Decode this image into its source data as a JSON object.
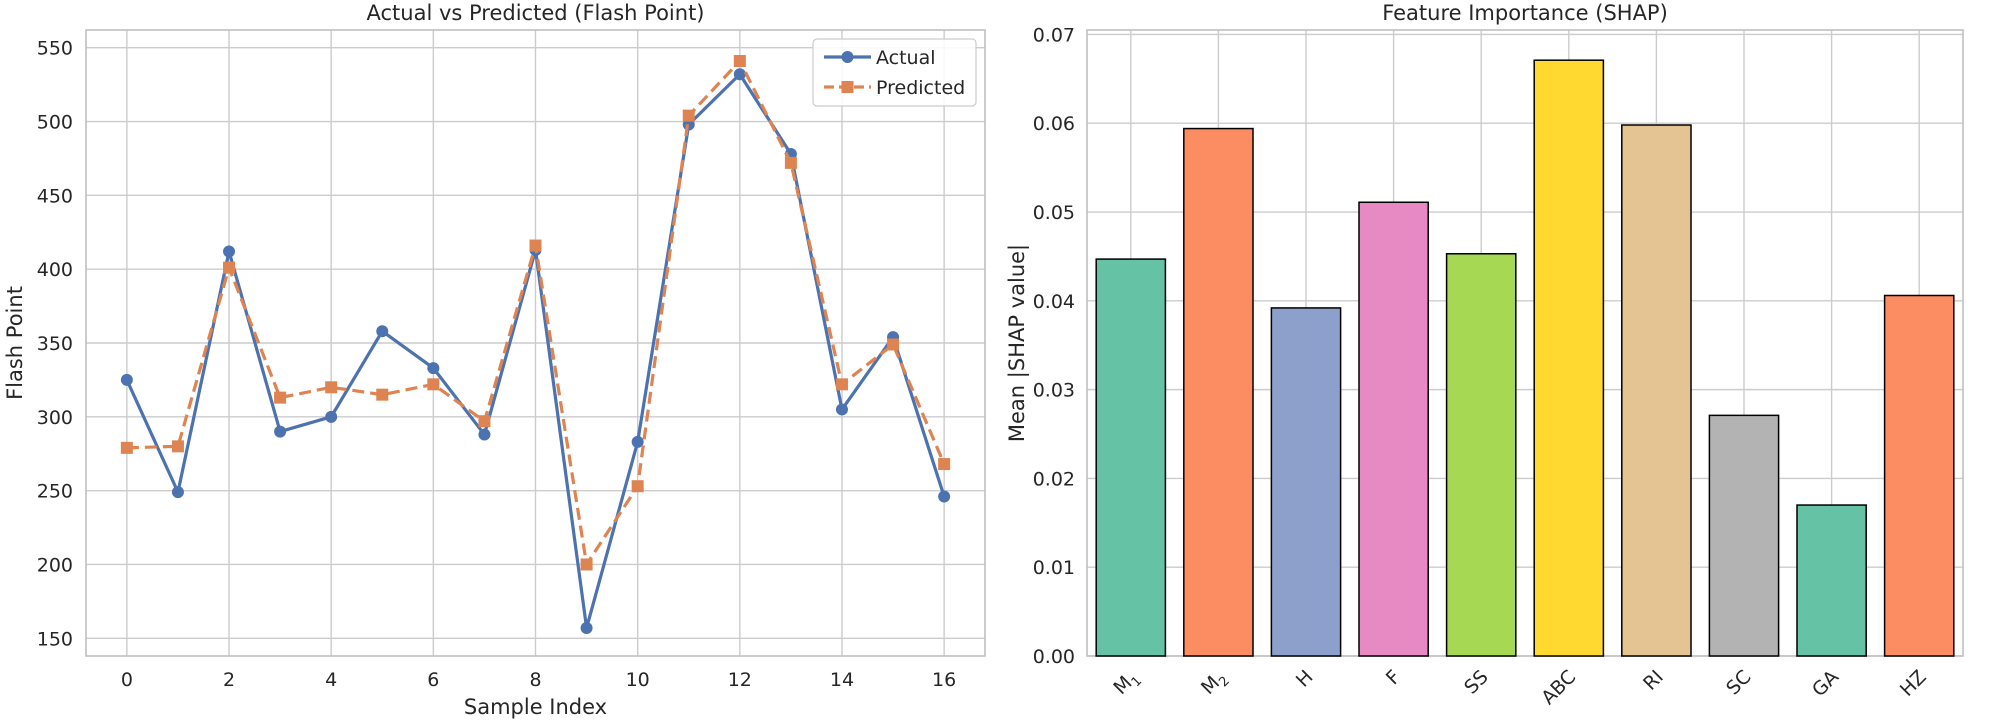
{
  "chart_data": [
    {
      "type": "line",
      "title": "Actual vs Predicted (Flash Point)",
      "xlabel": "Sample Index",
      "ylabel": "Flash Point",
      "x": [
        0,
        1,
        2,
        3,
        4,
        5,
        6,
        7,
        8,
        9,
        10,
        11,
        12,
        13,
        14,
        15,
        16
      ],
      "xticks": [
        "0",
        "2",
        "4",
        "6",
        "8",
        "10",
        "12",
        "14",
        "16"
      ],
      "yticks": [
        "150",
        "200",
        "250",
        "300",
        "350",
        "400",
        "450",
        "500",
        "550"
      ],
      "xlim": [
        -0.8,
        16.8
      ],
      "ylim": [
        138,
        562
      ],
      "grid": true,
      "legend_position": "top-right",
      "series": [
        {
          "name": "Actual",
          "color": "#4c72b0",
          "marker": "circle",
          "linestyle": "solid",
          "values": [
            325,
            249,
            412,
            290,
            300,
            358,
            333,
            288,
            413,
            157,
            283,
            498,
            532,
            478,
            305,
            354,
            246
          ]
        },
        {
          "name": "Predicted",
          "color": "#dd8452",
          "marker": "square",
          "linestyle": "dashed",
          "values": [
            279,
            280,
            401,
            313,
            320,
            315,
            322,
            297,
            416,
            200,
            253,
            504,
            541,
            472,
            322,
            349,
            268
          ]
        }
      ]
    },
    {
      "type": "bar",
      "title": "Feature Importance (SHAP)",
      "xlabel": "",
      "ylabel": "Mean |SHAP value|",
      "categories": [
        {
          "base": "M",
          "sub": "1"
        },
        {
          "base": "M",
          "sub": "2"
        },
        {
          "base": "H",
          "sub": ""
        },
        {
          "base": "F",
          "sub": ""
        },
        {
          "base": "SS",
          "sub": ""
        },
        {
          "base": "ABC",
          "sub": ""
        },
        {
          "base": "RI",
          "sub": ""
        },
        {
          "base": "SC",
          "sub": ""
        },
        {
          "base": "GA",
          "sub": ""
        },
        {
          "base": "HZ",
          "sub": ""
        }
      ],
      "values": [
        0.0447,
        0.0594,
        0.0392,
        0.0511,
        0.0453,
        0.0671,
        0.0598,
        0.0271,
        0.017,
        0.0406
      ],
      "colors": [
        "#66c2a5",
        "#fc8d62",
        "#8da0cb",
        "#e78ac3",
        "#a6d854",
        "#ffd92f",
        "#e5c494",
        "#b3b3b3",
        "#66c2a5",
        "#fc8d62"
      ],
      "yticks": [
        "0.00",
        "0.01",
        "0.02",
        "0.03",
        "0.04",
        "0.05",
        "0.06",
        "0.07"
      ],
      "ylim": [
        0,
        0.0705
      ],
      "grid": true
    }
  ]
}
